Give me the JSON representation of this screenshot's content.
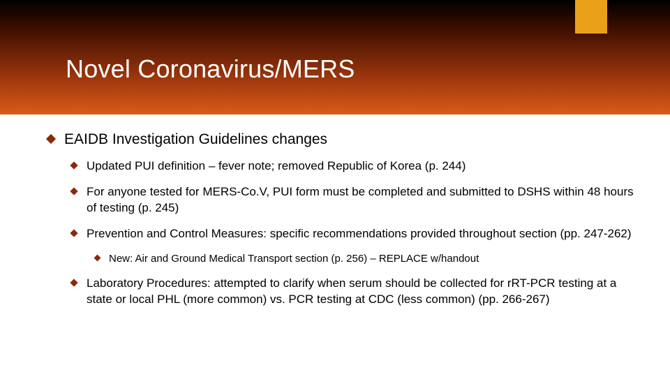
{
  "colors": {
    "accent": "#eaa11a",
    "diamond": "#8a2a0b",
    "title_color": "#ffffff",
    "header_gradient": [
      "#000000",
      "#3f0f00",
      "#a63a0e",
      "#d95b18"
    ],
    "background": "#ffffff",
    "text_color": "#000000"
  },
  "typography": {
    "title_fontsize": 36,
    "level1_fontsize": 21,
    "level2_fontsize": 17,
    "level3_fontsize": 15,
    "font_family": "Arial"
  },
  "title": "Novel Coronavirus/MERS",
  "bullets": {
    "level1": {
      "text": "EAIDB Investigation Guidelines changes"
    },
    "level2_a": {
      "text": "Updated PUI definition – fever note; removed Republic of Korea (p. 244)"
    },
    "level2_b": {
      "text": "For anyone tested for MERS-Co.V, PUI form must be completed and submitted to DSHS within 48 hours of testing (p. 245)"
    },
    "level2_c": {
      "text": "Prevention and Control Measures: specific recommendations provided throughout section (pp. 247-262)"
    },
    "level3_a": {
      "text": "New: Air and Ground Medical Transport section (p. 256) – REPLACE w/handout"
    },
    "level2_d": {
      "text": "Laboratory Procedures: attempted to clarify when serum should be collected for rRT-PCR testing at a state or local PHL (more common) vs. PCR testing at CDC (less common) (pp. 266-267)"
    }
  }
}
